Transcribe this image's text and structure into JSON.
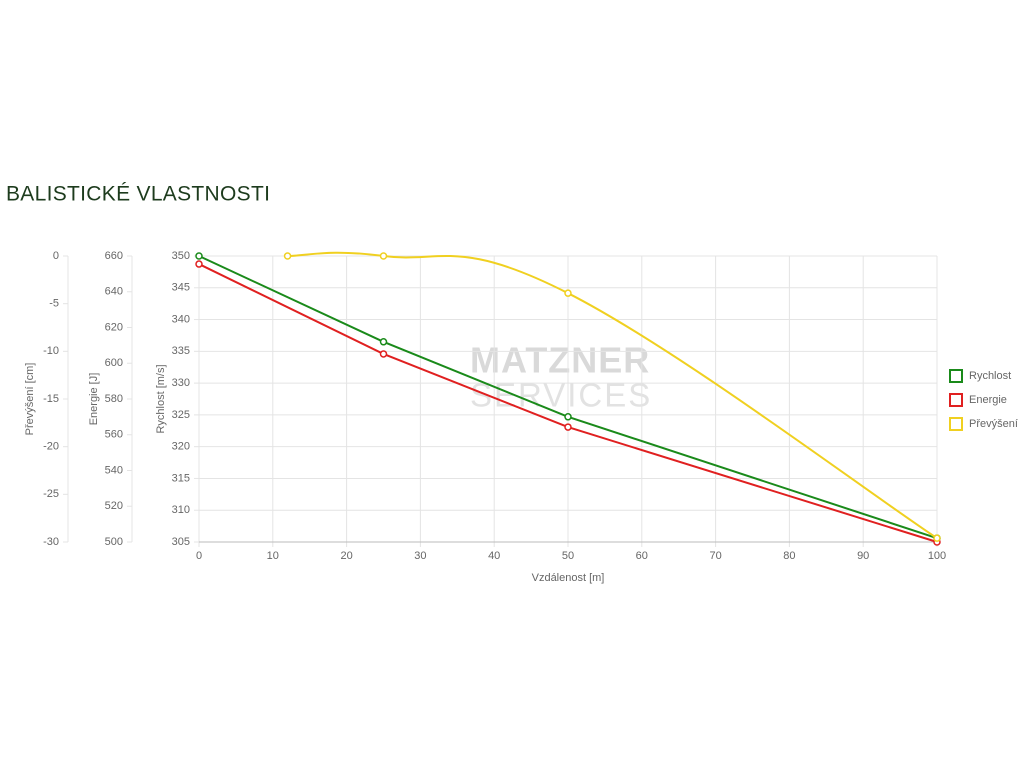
{
  "chart_data": {
    "type": "line",
    "title": "BALISTICKÉ VLASTNOSTI",
    "watermark": [
      "MATZNER",
      "SERVICES"
    ],
    "x_label": "Vzdálenost [m]",
    "xlim": [
      0,
      100
    ],
    "xticks": [
      0,
      10,
      20,
      30,
      40,
      50,
      60,
      70,
      80,
      90,
      100
    ],
    "grid": true,
    "legend": "right",
    "y_axes": [
      {
        "label": "Převýšení [cm]",
        "lim": [
          -30,
          0
        ],
        "ticks": [
          0,
          -5,
          -10,
          -15,
          -20,
          -25,
          -30
        ]
      },
      {
        "label": "Energie [J]",
        "lim": [
          500,
          660
        ],
        "ticks": [
          660,
          640,
          620,
          600,
          580,
          560,
          540,
          520,
          500
        ]
      },
      {
        "label": "Rychlost [m/s]",
        "lim": [
          305,
          350
        ],
        "ticks": [
          350,
          345,
          340,
          335,
          330,
          325,
          320,
          315,
          310,
          305
        ]
      }
    ],
    "series": [
      {
        "name": "Rychlost",
        "color": "#1a8a1a",
        "axis": 2,
        "smooth": false,
        "x": [
          0,
          25,
          50,
          100
        ],
        "values": [
          350,
          336.5,
          324.7,
          305.6
        ]
      },
      {
        "name": "Energie",
        "color": "#e02020",
        "axis": 1,
        "smooth": false,
        "x": [
          0,
          25,
          50,
          100
        ],
        "values": [
          655.5,
          605.2,
          564.3,
          500
        ]
      },
      {
        "name": "Převýšení",
        "color": "#f0d020",
        "axis": 0,
        "smooth": true,
        "x": [
          12,
          25,
          50,
          100
        ],
        "values": [
          0,
          0,
          -3.9,
          -29.6
        ]
      }
    ]
  }
}
